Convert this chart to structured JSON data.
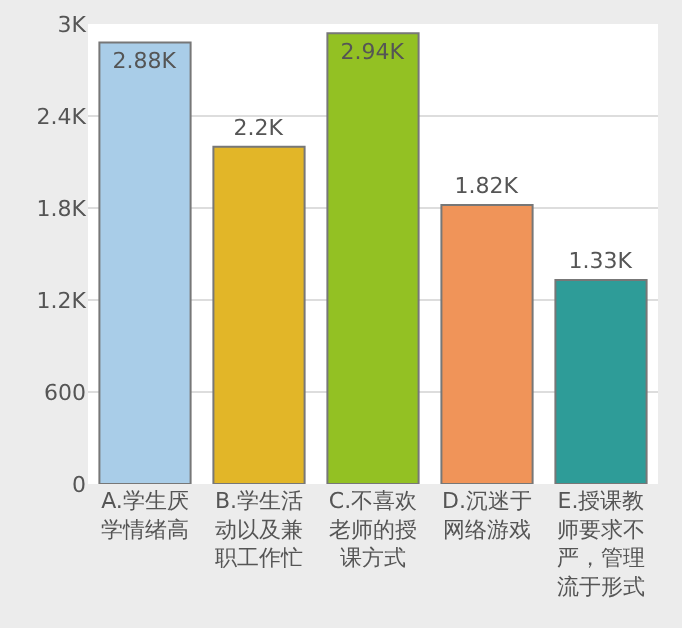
{
  "chart_data": {
    "type": "bar",
    "categories": [
      "A.学生厌学情绪高",
      "B.学生活动以及兼职工作忙",
      "C.不喜欢老师的授课方式",
      "D.沉迷于网络游戏",
      "E.授课教师要求不严，管理流于形式"
    ],
    "values": [
      2880,
      2200,
      2940,
      1820,
      1330
    ],
    "value_labels": [
      "2.88K",
      "2.2K",
      "2.94K",
      "1.82K",
      "1.33K"
    ],
    "colors": [
      "#a9cde8",
      "#e2b628",
      "#93c123",
      "#f09459",
      "#2e9c98"
    ],
    "ylim": [
      0,
      3000
    ],
    "yticks": [
      0,
      {
        "value": 600,
        "label": "600"
      },
      {
        "value": 1200,
        "label": "1.2K"
      },
      {
        "value": 1800,
        "label": "1.8K"
      },
      {
        "value": 2400,
        "label": "2.4K"
      },
      {
        "value": 3000,
        "label": "3K"
      }
    ],
    "grid": "y"
  }
}
